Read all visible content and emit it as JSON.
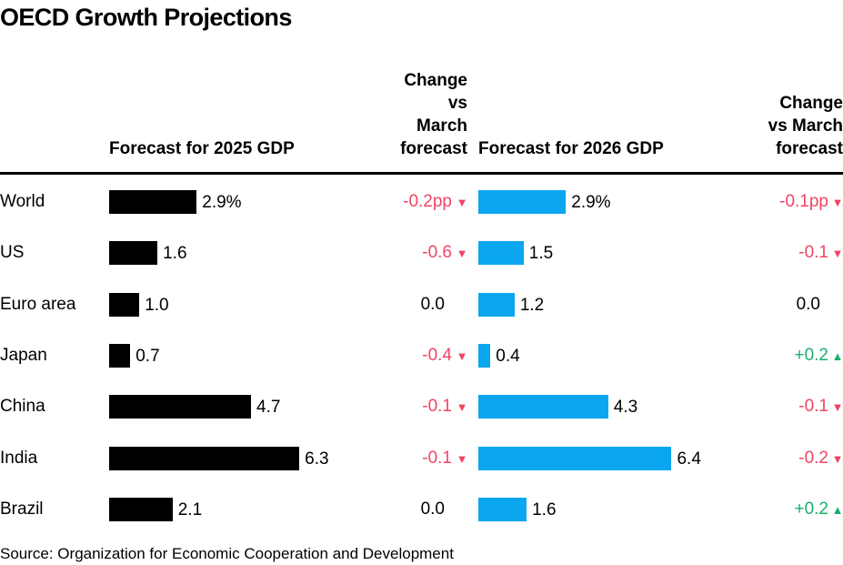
{
  "title": "OECD Growth Projections",
  "headers": {
    "forecast_2025": "Forecast for 2025 GDP",
    "change_2025": [
      "Change",
      "vs",
      "March",
      "forecast"
    ],
    "forecast_2026": "Forecast for 2026 GDP",
    "change_2026": [
      "Change",
      "vs March",
      "forecast"
    ]
  },
  "source": "Source: Organization for Economic Cooperation and Development",
  "colors": {
    "bar_2025": "#000000",
    "bar_2026": "#0aa6ef",
    "negative": "#ee4563",
    "positive": "#19b06b"
  },
  "chart_data": {
    "type": "bar",
    "orientation": "horizontal",
    "title": "OECD Growth Projections",
    "categories": [
      "World",
      "US",
      "Euro area",
      "Japan",
      "China",
      "India",
      "Brazil"
    ],
    "series": [
      {
        "name": "Forecast for 2025 GDP",
        "values": [
          2.9,
          1.6,
          1.0,
          0.7,
          4.7,
          6.3,
          2.1
        ],
        "labels": [
          "2.9%",
          "1.6",
          "1.0",
          "0.7",
          "4.7",
          "6.3",
          "2.1"
        ]
      },
      {
        "name": "Forecast for 2026 GDP",
        "values": [
          2.9,
          1.5,
          1.2,
          0.4,
          4.3,
          6.4,
          1.6
        ],
        "labels": [
          "2.9%",
          "1.5",
          "1.2",
          "0.4",
          "4.3",
          "6.4",
          "1.6"
        ]
      }
    ],
    "change_vs_march_2025": {
      "values": [
        -0.2,
        -0.6,
        0.0,
        -0.4,
        -0.1,
        -0.1,
        0.0
      ],
      "labels": [
        "-0.2pp",
        "-0.6",
        "0.0",
        "-0.4",
        "-0.1",
        "-0.1",
        "0.0"
      ]
    },
    "change_vs_march_2026": {
      "values": [
        -0.1,
        -0.1,
        0.0,
        0.2,
        -0.1,
        -0.2,
        0.2
      ],
      "labels": [
        "-0.1pp",
        "-0.1",
        "0.0",
        "+0.2",
        "-0.1",
        "-0.2",
        "+0.2"
      ]
    },
    "arrow_down": "▼",
    "arrow_up": "▲"
  }
}
